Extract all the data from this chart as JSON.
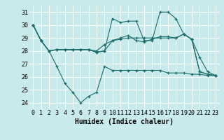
{
  "title": "",
  "xlabel": "Humidex (Indice chaleur)",
  "ylabel": "",
  "background_color": "#c8eaea",
  "grid_color": "#ffffff",
  "line_color": "#1a6b6b",
  "xlim": [
    -0.5,
    23.5
  ],
  "ylim": [
    23.5,
    31.5
  ],
  "yticks": [
    24,
    25,
    26,
    27,
    28,
    29,
    30,
    31
  ],
  "xticks": [
    0,
    1,
    2,
    3,
    4,
    5,
    6,
    7,
    8,
    9,
    10,
    11,
    12,
    13,
    14,
    15,
    16,
    17,
    18,
    19,
    20,
    21,
    22,
    23
  ],
  "series": [
    [
      30.0,
      28.8,
      28.0,
      28.1,
      28.1,
      28.1,
      28.1,
      28.1,
      27.9,
      28.0,
      28.8,
      29.0,
      29.2,
      28.8,
      28.7,
      28.9,
      29.1,
      29.1,
      29.0,
      29.3,
      28.9,
      26.4,
      26.2,
      26.1
    ],
    [
      30.0,
      28.8,
      28.0,
      28.1,
      28.1,
      28.1,
      28.1,
      28.1,
      27.9,
      28.0,
      30.5,
      30.2,
      30.3,
      30.3,
      28.8,
      28.8,
      31.0,
      31.0,
      30.5,
      29.3,
      28.9,
      27.5,
      26.4,
      26.1
    ],
    [
      30.0,
      28.8,
      28.0,
      28.1,
      28.1,
      28.1,
      28.1,
      28.1,
      28.0,
      28.5,
      28.8,
      28.9,
      29.0,
      29.0,
      29.0,
      29.0,
      29.0,
      29.0,
      29.0,
      29.3,
      28.9,
      26.4,
      26.2,
      26.1
    ],
    [
      30.0,
      28.8,
      28.0,
      26.8,
      25.5,
      24.8,
      24.0,
      24.5,
      24.8,
      26.8,
      26.5,
      26.5,
      26.5,
      26.5,
      26.5,
      26.5,
      26.5,
      26.3,
      26.3,
      26.3,
      26.2,
      26.2,
      26.1,
      26.1
    ]
  ],
  "tick_fontsize": 6,
  "xlabel_fontsize": 7
}
